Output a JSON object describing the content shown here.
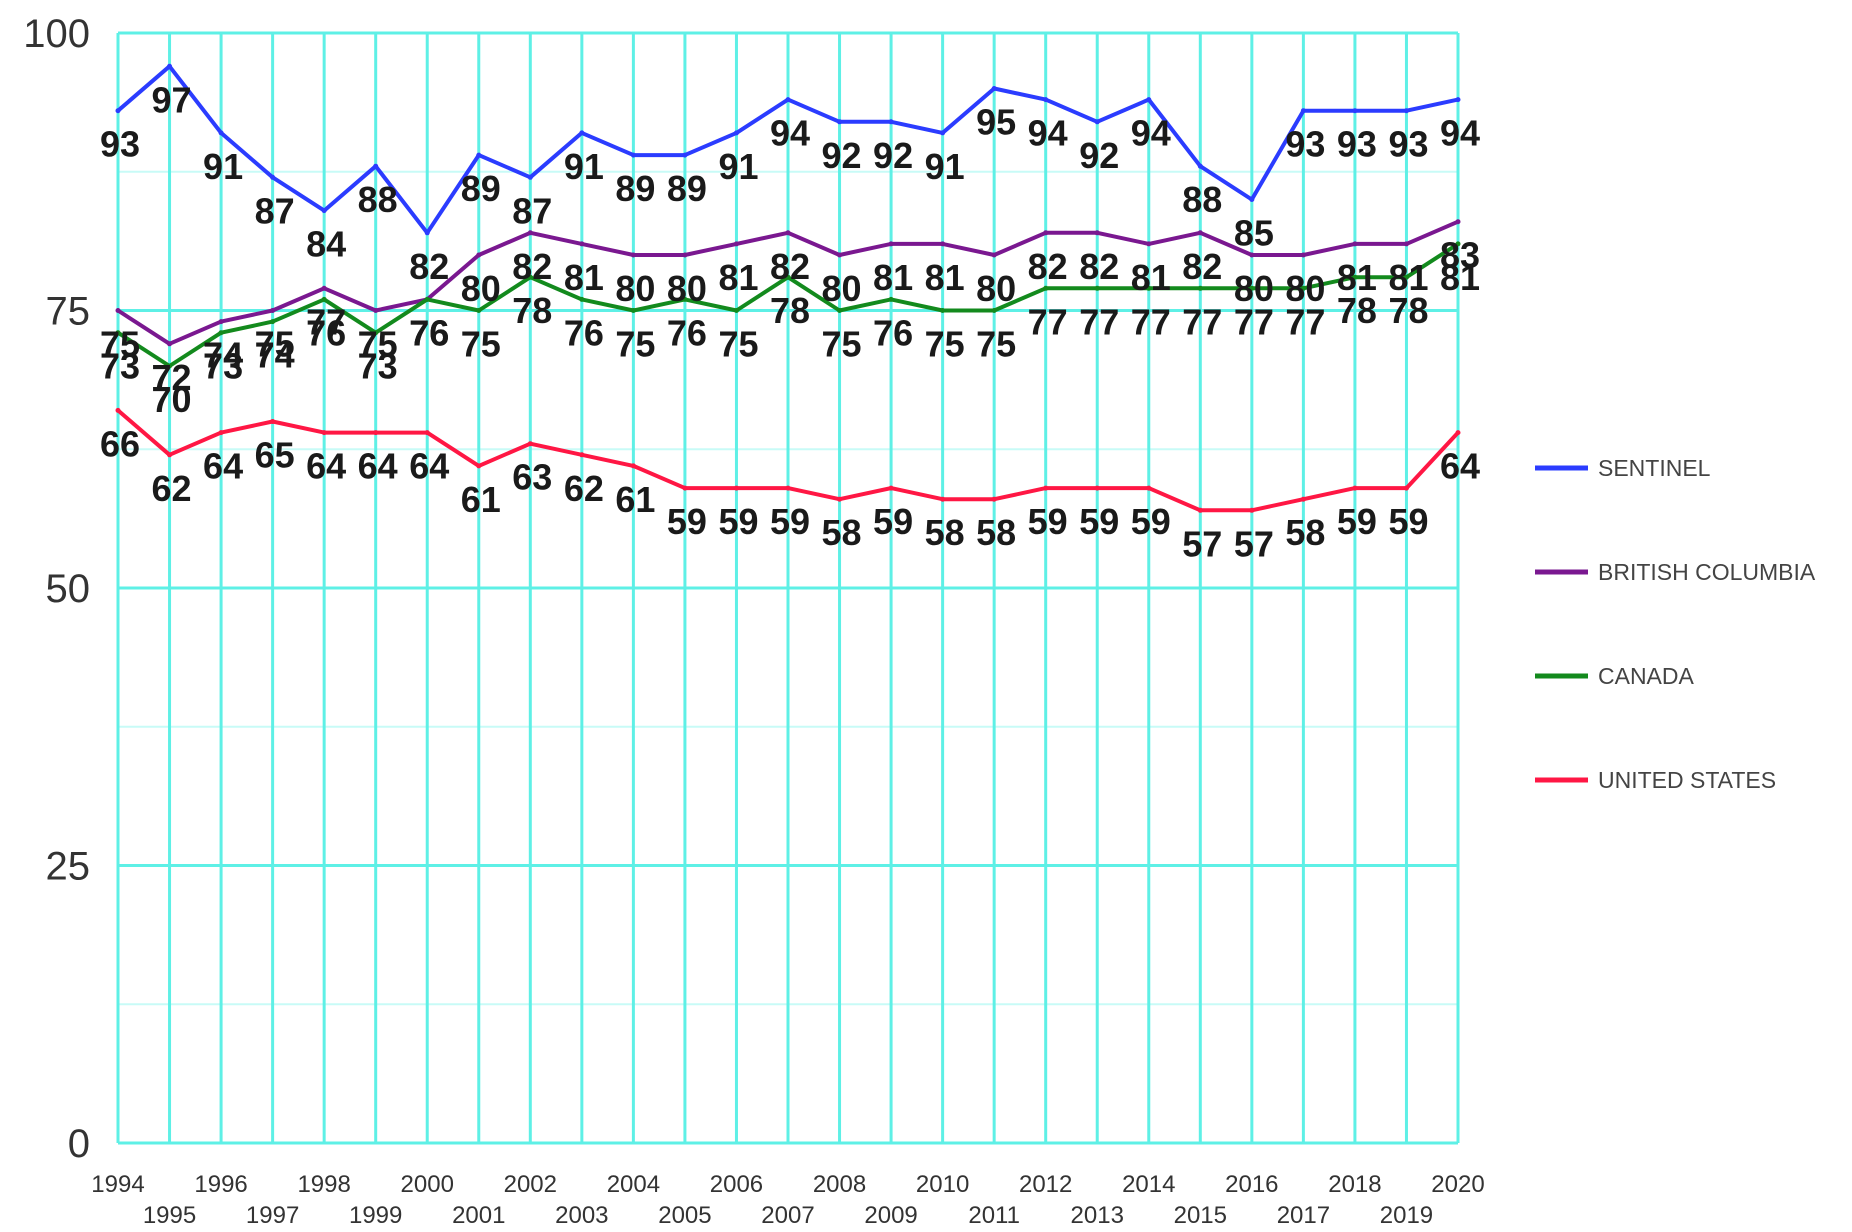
{
  "chart_data": {
    "type": "line",
    "title": "",
    "xlabel": "",
    "ylabel": "",
    "x": [
      1994,
      1995,
      1996,
      1997,
      1998,
      1999,
      2000,
      2001,
      2002,
      2003,
      2004,
      2005,
      2006,
      2007,
      2008,
      2009,
      2010,
      2011,
      2012,
      2013,
      2014,
      2015,
      2016,
      2017,
      2018,
      2019,
      2020
    ],
    "x_tick_labels": [
      "1994",
      "1995",
      "1996",
      "1997",
      "1998",
      "1999",
      "2000",
      "2001",
      "2002",
      "2003",
      "2004",
      "2005",
      "2006",
      "2007",
      "2008",
      "2009",
      "2010",
      "2011",
      "2012",
      "2013",
      "2014",
      "2015",
      "2016",
      "2017",
      "2018",
      "2019",
      "2020"
    ],
    "ylim": [
      0,
      100
    ],
    "y_ticks": [
      0,
      25,
      50,
      75,
      100
    ],
    "y_tick_labels": [
      "0",
      "25",
      "50",
      "75",
      "100"
    ],
    "grid": true,
    "grid_color": "#5ef0e6",
    "minor_grid_color": "#c8fbf7",
    "legend_position": "right",
    "series": [
      {
        "name": "SENTINEL",
        "color": "#2b3cff",
        "values": [
          93,
          97,
          91,
          87,
          84,
          88,
          82,
          89,
          87,
          91,
          89,
          89,
          91,
          94,
          92,
          92,
          91,
          95,
          94,
          92,
          94,
          88,
          85,
          93,
          93,
          93,
          94
        ]
      },
      {
        "name": "BRITISH COLUMBIA",
        "color": "#7a1890",
        "values": [
          75,
          72,
          74,
          75,
          77,
          75,
          76,
          80,
          82,
          81,
          80,
          80,
          81,
          82,
          80,
          81,
          81,
          80,
          82,
          82,
          81,
          82,
          80,
          80,
          81,
          81,
          83
        ]
      },
      {
        "name": "CANADA",
        "color": "#138a1d",
        "values": [
          73,
          70,
          73,
          74,
          76,
          73,
          76,
          75,
          78,
          76,
          75,
          76,
          75,
          78,
          75,
          76,
          75,
          75,
          77,
          77,
          77,
          77,
          77,
          77,
          78,
          78,
          81
        ]
      },
      {
        "name": "UNITED STATES",
        "color": "#ff1744",
        "values": [
          66,
          62,
          64,
          65,
          64,
          64,
          64,
          61,
          63,
          62,
          61,
          59,
          59,
          59,
          58,
          59,
          58,
          58,
          59,
          59,
          59,
          57,
          57,
          58,
          59,
          59,
          64
        ]
      }
    ]
  }
}
